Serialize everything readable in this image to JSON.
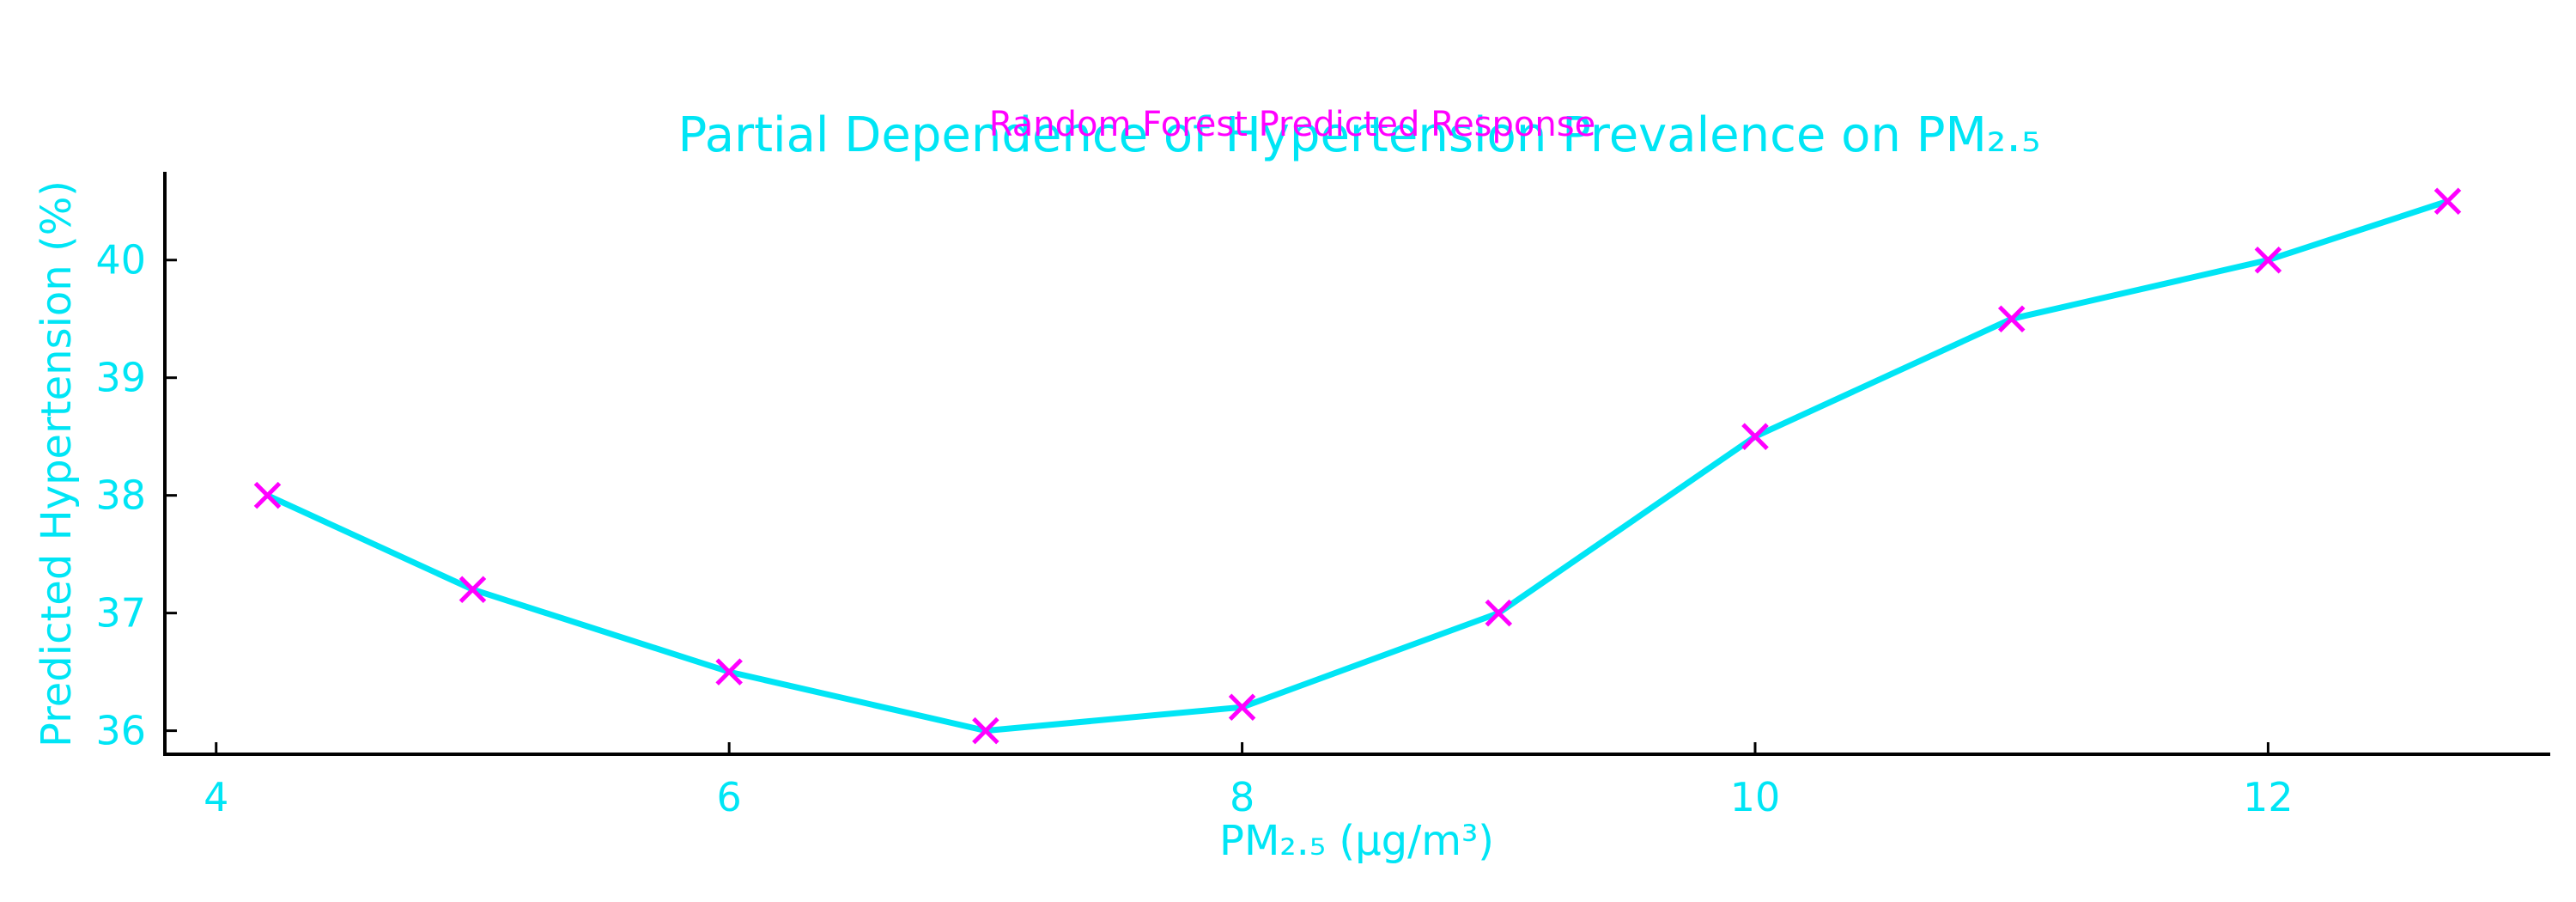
{
  "chart_data": {
    "type": "line",
    "title": "Partial Dependence of Hypertension Prevalence on PM₂.₅",
    "subtitle": "Random Forest Predicted Response",
    "xlabel": "PM₂.₅ (µg/m³)",
    "ylabel": "Predicted Hypertension (%)",
    "xlim": [
      3.8,
      13.1
    ],
    "ylim": [
      35.8,
      40.75
    ],
    "xticks": [
      4,
      6,
      8,
      10,
      12
    ],
    "yticks": [
      36,
      37,
      38,
      39,
      40
    ],
    "grid": false,
    "series": [
      {
        "x": [
          4.2,
          5.0,
          6.0,
          7.0,
          8.0,
          9.0,
          10.0,
          11.0,
          12.0,
          12.7
        ],
        "y": [
          38.0,
          37.2,
          36.5,
          36.0,
          36.2,
          37.0,
          38.5,
          39.5,
          40.0,
          40.5
        ]
      }
    ],
    "line_color": "#00e5f5",
    "marker_color": "#ff00ff",
    "marker": "x",
    "axis_color": "#000000"
  }
}
